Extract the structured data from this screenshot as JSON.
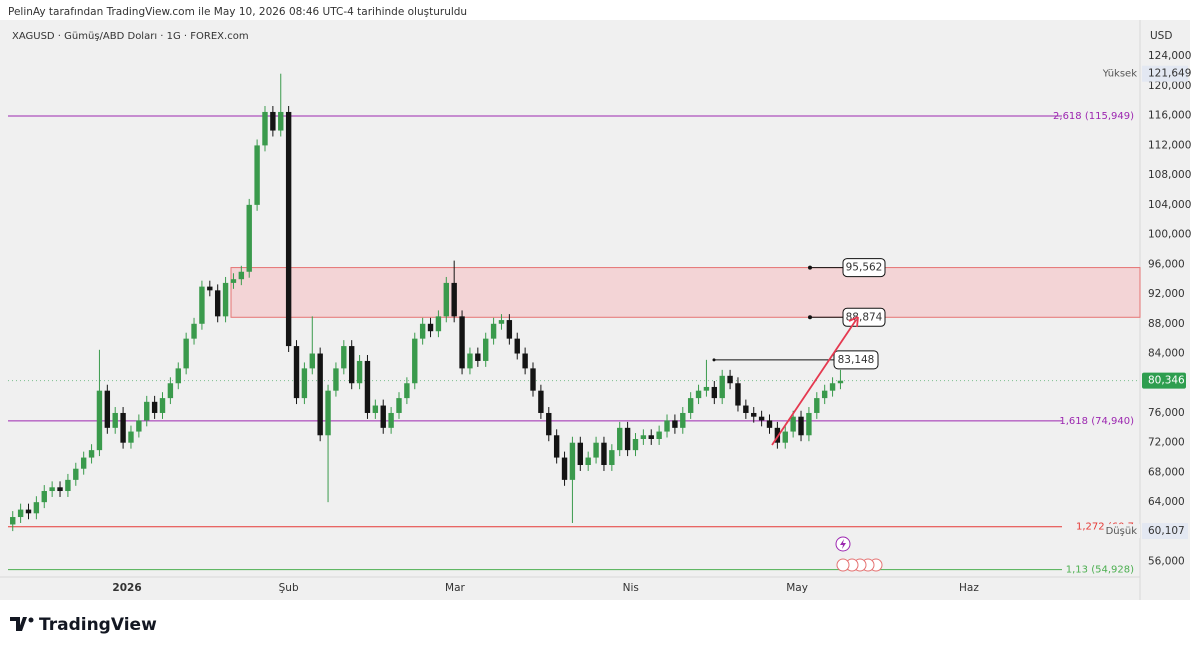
{
  "header": "PelinAy tarafından TradingView.com ile May 10, 2026 08:46 UTC-4 tarihinde oluşturuldu",
  "brand": "TradingView",
  "chart_data": {
    "type": "candlestick",
    "symbol": "XAGUSD · Gümüş/ABD Doları · 1G · FOREX.com",
    "currency": "USD",
    "up_color": "#3a9a4c",
    "down_color": "#141414",
    "open": [
      61000,
      62000,
      63000,
      62500,
      64000,
      65500,
      66000,
      65500,
      67000,
      68500,
      70000,
      71000,
      79000,
      74000,
      76000,
      72000,
      73500,
      75000,
      77500,
      76000,
      78000,
      80000,
      82000,
      86000,
      88000,
      93000,
      92500,
      89000,
      93500,
      94000,
      95000,
      104000,
      112000,
      116500,
      114000,
      116500,
      85000,
      78000,
      82000,
      84000,
      73000,
      79000,
      82000,
      85000,
      80000,
      83000,
      76000,
      77000,
      74000,
      76000,
      78000,
      80000,
      86000,
      88000,
      87000,
      89000,
      93500,
      89000,
      82000,
      84000,
      83000,
      86000,
      88000,
      88500,
      86000,
      84000,
      82000,
      79000,
      76000,
      73000,
      70000,
      67000,
      72000,
      69000,
      70000,
      72000,
      69000,
      71000,
      74000,
      71000,
      72500,
      73000,
      72500,
      73500,
      75000,
      74000,
      76000,
      78000,
      79000,
      79500,
      78000,
      81000,
      80000,
      77000,
      76000,
      75500,
      75000,
      74000,
      72000,
      73500,
      75500,
      73000,
      76000,
      78000,
      79000,
      80000
    ],
    "high": [
      62800,
      63800,
      63800,
      64800,
      66300,
      66800,
      66800,
      67800,
      69300,
      70800,
      71800,
      84500,
      79800,
      76800,
      76800,
      74300,
      75800,
      78300,
      78300,
      78800,
      80800,
      82800,
      86800,
      88800,
      93800,
      93800,
      93300,
      94300,
      94800,
      95800,
      104800,
      112800,
      117300,
      117300,
      121649,
      117300,
      85800,
      82800,
      89000,
      84800,
      79800,
      82800,
      85800,
      85800,
      83800,
      83800,
      77800,
      77800,
      76800,
      78800,
      80800,
      86800,
      88800,
      88800,
      89800,
      94300,
      96500,
      89800,
      84800,
      84800,
      86800,
      88800,
      89300,
      89300,
      86800,
      84800,
      82800,
      79800,
      76800,
      73800,
      70800,
      72800,
      72800,
      70800,
      72800,
      72800,
      71800,
      74800,
      74800,
      73300,
      73800,
      73800,
      74300,
      75800,
      75800,
      76800,
      78800,
      79800,
      83148,
      80300,
      81800,
      81800,
      80800,
      77800,
      76800,
      76300,
      75800,
      74800,
      74300,
      76300,
      76300,
      76800,
      78800,
      79800,
      80800,
      81800
    ],
    "low": [
      60107,
      61200,
      61700,
      61700,
      63200,
      64700,
      64700,
      64700,
      66200,
      67700,
      69200,
      70200,
      73200,
      73200,
      71200,
      71200,
      72700,
      74200,
      75200,
      75200,
      77200,
      79200,
      81200,
      85200,
      87200,
      91700,
      88200,
      88200,
      92700,
      93200,
      94200,
      103200,
      111200,
      113200,
      113200,
      84200,
      77200,
      77200,
      81200,
      72200,
      64000,
      78200,
      81200,
      79200,
      79200,
      75200,
      75200,
      73200,
      73200,
      75200,
      77200,
      79200,
      85200,
      86200,
      86200,
      88200,
      88200,
      81200,
      81200,
      82200,
      82200,
      85200,
      87200,
      85200,
      83200,
      81200,
      78200,
      75200,
      72200,
      69200,
      66200,
      61200,
      68200,
      68200,
      69200,
      68200,
      68200,
      70200,
      70200,
      70200,
      71700,
      71700,
      71700,
      72700,
      73200,
      73200,
      75200,
      77200,
      78200,
      77200,
      77200,
      79200,
      76200,
      75200,
      74700,
      74200,
      73200,
      71200,
      71200,
      72700,
      72200,
      72200,
      75200,
      77200,
      78200,
      79200
    ],
    "close": [
      62000,
      63000,
      62500,
      64000,
      65500,
      66000,
      65500,
      67000,
      68500,
      70000,
      71000,
      79000,
      74000,
      76000,
      72000,
      73500,
      75000,
      77500,
      76000,
      78000,
      80000,
      82000,
      86000,
      88000,
      93000,
      92500,
      89000,
      93500,
      94000,
      95000,
      104000,
      112000,
      116500,
      114000,
      116500,
      85000,
      78000,
      82000,
      84000,
      73000,
      79000,
      82000,
      85000,
      80000,
      83000,
      76000,
      77000,
      74000,
      76000,
      78000,
      80000,
      86000,
      88000,
      87000,
      89000,
      93500,
      89000,
      82000,
      84000,
      83000,
      86000,
      88000,
      88500,
      86000,
      84000,
      82000,
      79000,
      76000,
      73000,
      70000,
      67000,
      72000,
      69000,
      70000,
      72000,
      69000,
      71000,
      74000,
      71000,
      72500,
      73000,
      72500,
      73500,
      75000,
      74000,
      76000,
      78000,
      79000,
      79500,
      78000,
      81000,
      80000,
      77000,
      76000,
      75500,
      75000,
      74000,
      72000,
      73500,
      75500,
      73000,
      76000,
      78000,
      79000,
      80000,
      80346
    ],
    "xlim": [
      -0.6,
      143
    ],
    "xticks": [
      {
        "value": 14.5,
        "label": "2026"
      },
      {
        "value": 35,
        "label": "Şub"
      },
      {
        "value": 56.1,
        "label": "Mar"
      },
      {
        "value": 78.4,
        "label": "Nis"
      },
      {
        "value": 99.5,
        "label": "May"
      },
      {
        "value": 121.3,
        "label": "Haz"
      }
    ],
    "ylim": [
      54200,
      128200
    ],
    "yticks": [
      {
        "value": 56000,
        "label": "56,000"
      },
      {
        "value": 60000,
        "label": "60,000"
      },
      {
        "value": 64000,
        "label": "64,000"
      },
      {
        "value": 68000,
        "label": "68,000"
      },
      {
        "value": 72000,
        "label": "72,000"
      },
      {
        "value": 76000,
        "label": "76,000"
      },
      {
        "value": 84000,
        "label": "84,000"
      },
      {
        "value": 88000,
        "label": "88,000"
      },
      {
        "value": 92000,
        "label": "92,000"
      },
      {
        "value": 96000,
        "label": "96,000"
      },
      {
        "value": 100000,
        "label": "100,000"
      },
      {
        "value": 104000,
        "label": "104,000"
      },
      {
        "value": 108000,
        "label": "108,000"
      },
      {
        "value": 112000,
        "label": "112,000"
      },
      {
        "value": 116000,
        "label": "116,000"
      },
      {
        "value": 120000,
        "label": "120,000"
      },
      {
        "value": 124000,
        "label": "124,000"
      }
    ],
    "levels": [
      {
        "value": 115949,
        "label": "2,618 (115,949)",
        "color": "#9c27b0"
      },
      {
        "value": 74940,
        "label": "1,618 (74,940)",
        "color": "#9c27b0"
      },
      {
        "value": 60700,
        "label": "1,272 (60,7",
        "color": "#e53935"
      },
      {
        "value": 54928,
        "label": "1,13 (54,928)",
        "color": "#4caf50"
      }
    ],
    "zone": {
      "low": {
        "value": 88874,
        "label": "88,874"
      },
      "high": {
        "value": 95562,
        "label": "95,562"
      },
      "color": "#f4c7cb"
    },
    "marker": {
      "value": 83148,
      "label": "83,148"
    },
    "last": {
      "value": 80346,
      "label": "80,346",
      "color": "#2e9e4f"
    },
    "stat_high": {
      "name": "Yüksek",
      "value": 121649,
      "label": "121,649"
    },
    "stat_low": {
      "name": "Düşük",
      "value": 60107,
      "label": "60,107"
    }
  }
}
